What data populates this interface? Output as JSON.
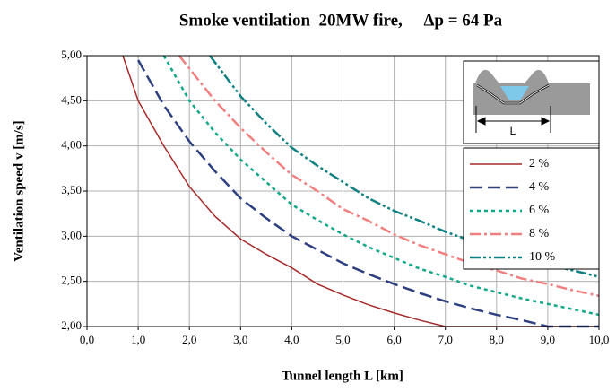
{
  "chart_data": {
    "type": "line",
    "title": "Smoke ventilation  20MW fire,     Δp = 64 Pa",
    "x_label": "Tunnel length L [km]",
    "y_label": "Ventilation speed v [m/s]",
    "inset_label": "L",
    "xlim": [
      0,
      10
    ],
    "ylim": [
      2,
      5
    ],
    "xticks": [
      {
        "value": 0,
        "label": "0,0"
      },
      {
        "value": 1,
        "label": "1,0"
      },
      {
        "value": 2,
        "label": "2,0"
      },
      {
        "value": 3,
        "label": "3,0"
      },
      {
        "value": 4,
        "label": "4,0"
      },
      {
        "value": 5,
        "label": "5,0"
      },
      {
        "value": 6,
        "label": "6,0"
      },
      {
        "value": 7,
        "label": "7,0"
      },
      {
        "value": 8,
        "label": "8,0"
      },
      {
        "value": 9,
        "label": "9,0"
      },
      {
        "value": 10,
        "label": "10,0"
      }
    ],
    "yticks": [
      {
        "value": 2,
        "label": "2,00"
      },
      {
        "value": 2.5,
        "label": "2,50"
      },
      {
        "value": 3,
        "label": "3,00"
      },
      {
        "value": 3.5,
        "label": "3,50"
      },
      {
        "value": 4,
        "label": "4,00"
      },
      {
        "value": 4.5,
        "label": "4,50"
      },
      {
        "value": 5,
        "label": "5,00"
      }
    ],
    "grid": true,
    "legend": "right",
    "series": [
      {
        "name": "2 %",
        "color": "#a52a2a",
        "x": [
          0.7,
          1.0,
          1.5,
          2.0,
          2.5,
          3.0,
          3.5,
          4.0,
          4.5,
          5.0,
          5.5,
          6.0,
          6.5,
          7.0,
          10.0
        ],
        "values": [
          5.0,
          4.5,
          4.0,
          3.55,
          3.22,
          2.97,
          2.8,
          2.65,
          2.47,
          2.35,
          2.24,
          2.15,
          2.07,
          2.0,
          2.0
        ]
      },
      {
        "name": "4 %",
        "color": "#2e3f80",
        "x": [
          1.0,
          1.5,
          2.0,
          2.5,
          3.0,
          3.5,
          4.0,
          4.5,
          5.0,
          5.5,
          6.0,
          6.5,
          7.0,
          7.5,
          8.0,
          8.5,
          9.0,
          10.0
        ],
        "values": [
          4.95,
          4.45,
          4.05,
          3.72,
          3.42,
          3.2,
          3.0,
          2.85,
          2.7,
          2.58,
          2.47,
          2.37,
          2.28,
          2.2,
          2.13,
          2.07,
          2.0,
          2.0
        ]
      },
      {
        "name": "6 %",
        "color": "#13a88a",
        "x": [
          1.5,
          2.0,
          2.5,
          3.0,
          3.5,
          4.0,
          4.5,
          5.0,
          5.5,
          6.0,
          6.5,
          7.0,
          7.5,
          8.0,
          8.5,
          9.0,
          9.5,
          10.0
        ],
        "values": [
          5.0,
          4.5,
          4.15,
          3.85,
          3.6,
          3.35,
          3.18,
          3.02,
          2.88,
          2.76,
          2.64,
          2.55,
          2.45,
          2.38,
          2.31,
          2.25,
          2.19,
          2.13
        ]
      },
      {
        "name": "8 %",
        "color": "#f08080",
        "x": [
          1.8,
          2.5,
          3.0,
          3.5,
          4.0,
          4.5,
          5.0,
          5.5,
          6.0,
          6.5,
          7.0,
          7.5,
          8.0,
          8.5,
          9.0,
          9.5,
          10.0
        ],
        "values": [
          5.0,
          4.5,
          4.2,
          3.93,
          3.68,
          3.5,
          3.3,
          3.17,
          3.02,
          2.9,
          2.8,
          2.7,
          2.62,
          2.53,
          2.47,
          2.4,
          2.34
        ]
      },
      {
        "name": "10 %",
        "color": "#108080",
        "x": [
          2.4,
          3.0,
          3.5,
          4.0,
          4.5,
          5.0,
          5.5,
          6.0,
          6.5,
          7.0,
          7.5,
          8.0,
          8.5,
          9.0,
          9.5,
          10.0
        ],
        "values": [
          5.0,
          4.55,
          4.25,
          3.98,
          3.78,
          3.6,
          3.42,
          3.28,
          3.17,
          3.05,
          2.95,
          2.85,
          2.77,
          2.68,
          2.62,
          2.55
        ]
      }
    ]
  }
}
